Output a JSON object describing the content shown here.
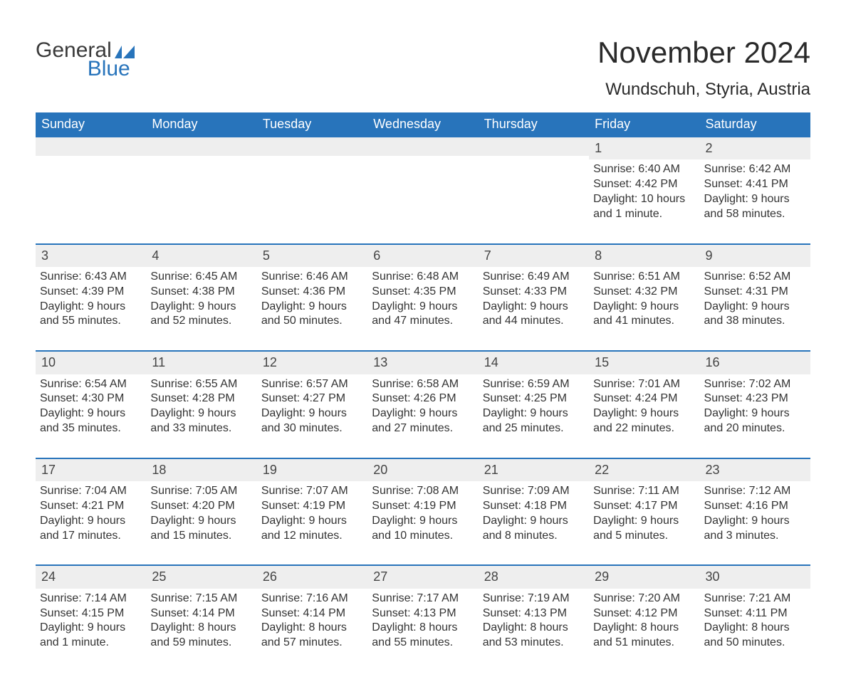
{
  "logo": {
    "text1": "General",
    "text2": "Blue"
  },
  "title": "November 2024",
  "location": "Wundschuh, Styria, Austria",
  "colors": {
    "header_bg": "#2874bb",
    "header_text": "#ffffff",
    "rule": "#2874bb",
    "daynum_bg": "#eeeeee",
    "body_text": "#333333",
    "page_bg": "#ffffff",
    "logo_blue": "#2874bb",
    "logo_gray": "#3a3a3a"
  },
  "typography": {
    "title_fontsize": 42,
    "location_fontsize": 24,
    "header_fontsize": 18,
    "cell_fontsize": 16,
    "font_family": "Arial"
  },
  "day_names": [
    "Sunday",
    "Monday",
    "Tuesday",
    "Wednesday",
    "Thursday",
    "Friday",
    "Saturday"
  ],
  "weeks": [
    [
      {
        "empty": true
      },
      {
        "empty": true
      },
      {
        "empty": true
      },
      {
        "empty": true
      },
      {
        "empty": true
      },
      {
        "day": "1",
        "sunrise": "Sunrise: 6:40 AM",
        "sunset": "Sunset: 4:42 PM",
        "dl1": "Daylight: 10 hours",
        "dl2": "and 1 minute."
      },
      {
        "day": "2",
        "sunrise": "Sunrise: 6:42 AM",
        "sunset": "Sunset: 4:41 PM",
        "dl1": "Daylight: 9 hours",
        "dl2": "and 58 minutes."
      }
    ],
    [
      {
        "day": "3",
        "sunrise": "Sunrise: 6:43 AM",
        "sunset": "Sunset: 4:39 PM",
        "dl1": "Daylight: 9 hours",
        "dl2": "and 55 minutes."
      },
      {
        "day": "4",
        "sunrise": "Sunrise: 6:45 AM",
        "sunset": "Sunset: 4:38 PM",
        "dl1": "Daylight: 9 hours",
        "dl2": "and 52 minutes."
      },
      {
        "day": "5",
        "sunrise": "Sunrise: 6:46 AM",
        "sunset": "Sunset: 4:36 PM",
        "dl1": "Daylight: 9 hours",
        "dl2": "and 50 minutes."
      },
      {
        "day": "6",
        "sunrise": "Sunrise: 6:48 AM",
        "sunset": "Sunset: 4:35 PM",
        "dl1": "Daylight: 9 hours",
        "dl2": "and 47 minutes."
      },
      {
        "day": "7",
        "sunrise": "Sunrise: 6:49 AM",
        "sunset": "Sunset: 4:33 PM",
        "dl1": "Daylight: 9 hours",
        "dl2": "and 44 minutes."
      },
      {
        "day": "8",
        "sunrise": "Sunrise: 6:51 AM",
        "sunset": "Sunset: 4:32 PM",
        "dl1": "Daylight: 9 hours",
        "dl2": "and 41 minutes."
      },
      {
        "day": "9",
        "sunrise": "Sunrise: 6:52 AM",
        "sunset": "Sunset: 4:31 PM",
        "dl1": "Daylight: 9 hours",
        "dl2": "and 38 minutes."
      }
    ],
    [
      {
        "day": "10",
        "sunrise": "Sunrise: 6:54 AM",
        "sunset": "Sunset: 4:30 PM",
        "dl1": "Daylight: 9 hours",
        "dl2": "and 35 minutes."
      },
      {
        "day": "11",
        "sunrise": "Sunrise: 6:55 AM",
        "sunset": "Sunset: 4:28 PM",
        "dl1": "Daylight: 9 hours",
        "dl2": "and 33 minutes."
      },
      {
        "day": "12",
        "sunrise": "Sunrise: 6:57 AM",
        "sunset": "Sunset: 4:27 PM",
        "dl1": "Daylight: 9 hours",
        "dl2": "and 30 minutes."
      },
      {
        "day": "13",
        "sunrise": "Sunrise: 6:58 AM",
        "sunset": "Sunset: 4:26 PM",
        "dl1": "Daylight: 9 hours",
        "dl2": "and 27 minutes."
      },
      {
        "day": "14",
        "sunrise": "Sunrise: 6:59 AM",
        "sunset": "Sunset: 4:25 PM",
        "dl1": "Daylight: 9 hours",
        "dl2": "and 25 minutes."
      },
      {
        "day": "15",
        "sunrise": "Sunrise: 7:01 AM",
        "sunset": "Sunset: 4:24 PM",
        "dl1": "Daylight: 9 hours",
        "dl2": "and 22 minutes."
      },
      {
        "day": "16",
        "sunrise": "Sunrise: 7:02 AM",
        "sunset": "Sunset: 4:23 PM",
        "dl1": "Daylight: 9 hours",
        "dl2": "and 20 minutes."
      }
    ],
    [
      {
        "day": "17",
        "sunrise": "Sunrise: 7:04 AM",
        "sunset": "Sunset: 4:21 PM",
        "dl1": "Daylight: 9 hours",
        "dl2": "and 17 minutes."
      },
      {
        "day": "18",
        "sunrise": "Sunrise: 7:05 AM",
        "sunset": "Sunset: 4:20 PM",
        "dl1": "Daylight: 9 hours",
        "dl2": "and 15 minutes."
      },
      {
        "day": "19",
        "sunrise": "Sunrise: 7:07 AM",
        "sunset": "Sunset: 4:19 PM",
        "dl1": "Daylight: 9 hours",
        "dl2": "and 12 minutes."
      },
      {
        "day": "20",
        "sunrise": "Sunrise: 7:08 AM",
        "sunset": "Sunset: 4:19 PM",
        "dl1": "Daylight: 9 hours",
        "dl2": "and 10 minutes."
      },
      {
        "day": "21",
        "sunrise": "Sunrise: 7:09 AM",
        "sunset": "Sunset: 4:18 PM",
        "dl1": "Daylight: 9 hours",
        "dl2": "and 8 minutes."
      },
      {
        "day": "22",
        "sunrise": "Sunrise: 7:11 AM",
        "sunset": "Sunset: 4:17 PM",
        "dl1": "Daylight: 9 hours",
        "dl2": "and 5 minutes."
      },
      {
        "day": "23",
        "sunrise": "Sunrise: 7:12 AM",
        "sunset": "Sunset: 4:16 PM",
        "dl1": "Daylight: 9 hours",
        "dl2": "and 3 minutes."
      }
    ],
    [
      {
        "day": "24",
        "sunrise": "Sunrise: 7:14 AM",
        "sunset": "Sunset: 4:15 PM",
        "dl1": "Daylight: 9 hours",
        "dl2": "and 1 minute."
      },
      {
        "day": "25",
        "sunrise": "Sunrise: 7:15 AM",
        "sunset": "Sunset: 4:14 PM",
        "dl1": "Daylight: 8 hours",
        "dl2": "and 59 minutes."
      },
      {
        "day": "26",
        "sunrise": "Sunrise: 7:16 AM",
        "sunset": "Sunset: 4:14 PM",
        "dl1": "Daylight: 8 hours",
        "dl2": "and 57 minutes."
      },
      {
        "day": "27",
        "sunrise": "Sunrise: 7:17 AM",
        "sunset": "Sunset: 4:13 PM",
        "dl1": "Daylight: 8 hours",
        "dl2": "and 55 minutes."
      },
      {
        "day": "28",
        "sunrise": "Sunrise: 7:19 AM",
        "sunset": "Sunset: 4:13 PM",
        "dl1": "Daylight: 8 hours",
        "dl2": "and 53 minutes."
      },
      {
        "day": "29",
        "sunrise": "Sunrise: 7:20 AM",
        "sunset": "Sunset: 4:12 PM",
        "dl1": "Daylight: 8 hours",
        "dl2": "and 51 minutes."
      },
      {
        "day": "30",
        "sunrise": "Sunrise: 7:21 AM",
        "sunset": "Sunset: 4:11 PM",
        "dl1": "Daylight: 8 hours",
        "dl2": "and 50 minutes."
      }
    ]
  ]
}
